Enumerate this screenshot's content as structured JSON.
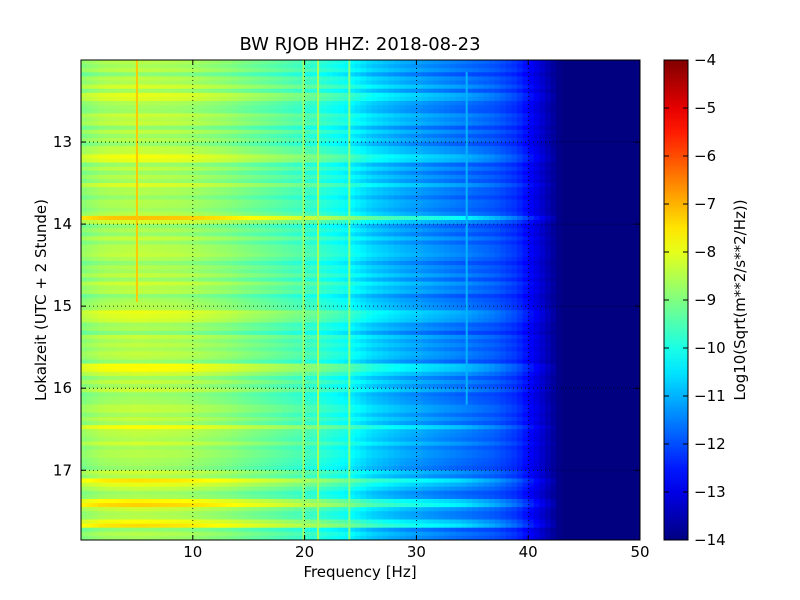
{
  "chart_data": {
    "type": "heatmap",
    "title": "BW RJOB HHZ: 2018-08-23",
    "xlabel": "Frequency [Hz]",
    "ylabel": "Lokalzeit (UTC + 2 Stunde)",
    "colorbar_label": "Log10(Sqrt(m**2/s**2/Hz))",
    "xlim": [
      0,
      50
    ],
    "ylim": [
      12.0,
      17.85
    ],
    "y_inverted": true,
    "clim": [
      -14,
      -4
    ],
    "colormap": "jet",
    "grid": true,
    "x_ticks": [
      10,
      20,
      30,
      40,
      50
    ],
    "y_ticks": [
      13,
      14,
      15,
      16,
      17
    ],
    "colorbar_ticks": [
      -4,
      -5,
      -6,
      -7,
      -8,
      -9,
      -10,
      -11,
      -12,
      -13,
      -14
    ],
    "background_profile": {
      "freq": [
        0,
        2,
        5,
        9,
        13,
        17,
        20,
        24,
        26,
        29,
        31,
        34,
        37,
        39,
        40.5,
        42,
        43,
        50
      ],
      "value": [
        -8.9,
        -8.6,
        -8.5,
        -8.6,
        -8.9,
        -9.3,
        -9.6,
        -10.2,
        -10.7,
        -11.1,
        -11.3,
        -11.6,
        -11.9,
        -12.3,
        -12.9,
        -13.6,
        -14.0,
        -14.0
      ]
    },
    "spectral_lines": [
      {
        "freq": 5.0,
        "value": -7.2,
        "time_range": [
          12.0,
          14.95
        ]
      },
      {
        "freq": 19.9,
        "value": -8.7,
        "time_range": [
          12.0,
          17.85
        ]
      },
      {
        "freq": 21.2,
        "value": -8.6,
        "time_range": [
          12.0,
          17.85
        ]
      },
      {
        "freq": 24.0,
        "value": -8.9,
        "time_range": [
          12.0,
          17.85
        ]
      },
      {
        "freq": 34.5,
        "value": -11.0,
        "time_range": [
          12.15,
          16.2
        ]
      }
    ],
    "event_rows": [
      {
        "time": 12.45,
        "delta": 0.5
      },
      {
        "time": 13.2,
        "delta": 0.6
      },
      {
        "time": 13.92,
        "delta": 1.3
      },
      {
        "time": 15.1,
        "delta": 0.5
      },
      {
        "time": 15.75,
        "delta": 0.9
      },
      {
        "time": 16.5,
        "delta": 0.6
      },
      {
        "time": 17.15,
        "delta": 0.8
      },
      {
        "time": 17.4,
        "delta": 1.1
      },
      {
        "time": 17.65,
        "delta": 0.9
      }
    ]
  }
}
